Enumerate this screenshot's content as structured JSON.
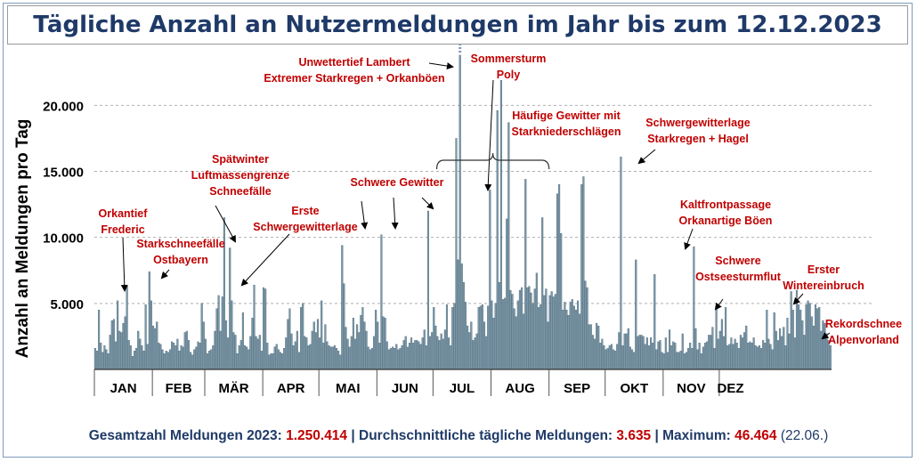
{
  "title": "Tägliche Anzahl an Nutzermeldungen im Jahr bis zum 12.12.2023",
  "colors": {
    "bar": "#7b98a8",
    "bar_stroke": "#3a5566",
    "annotation": "#c00000",
    "title": "#1f3a68",
    "grid": "#b0b0b0"
  },
  "chart_data": {
    "type": "bar",
    "ylabel": "Anzahl an Meldungen pro Tag",
    "xlabel": "",
    "ylim": [
      0,
      24000
    ],
    "y_ticks": [
      0,
      5000,
      10000,
      15000,
      20000
    ],
    "y_tick_labels": [
      "",
      "5.000",
      "10.000",
      "15.000",
      "20.000"
    ],
    "grid": "horizontal dashed",
    "months": [
      "JAN",
      "FEB",
      "MÄR",
      "APR",
      "MAI",
      "JUN",
      "JUL",
      "AUG",
      "SEP",
      "OKT",
      "NOV",
      "DEZ"
    ],
    "month_days": [
      31,
      28,
      31,
      30,
      31,
      30,
      31,
      31,
      30,
      31,
      30,
      12
    ],
    "values": [
      1600,
      1400,
      4500,
      2000,
      1300,
      1800,
      1500,
      1200,
      2600,
      3700,
      3800,
      2100,
      5200,
      2900,
      2800,
      3500,
      4000,
      6300,
      2200,
      1800,
      1000,
      1400,
      1600,
      2900,
      2300,
      1800,
      1400,
      4900,
      1900,
      7400,
      5200,
      3300,
      3100,
      3600,
      2000,
      1900,
      1500,
      1200,
      1400,
      1300,
      1500,
      2100,
      2000,
      1800,
      2300,
      1400,
      1800,
      1700,
      2800,
      2900,
      2200,
      1300,
      1100,
      1500,
      1700,
      2100,
      2000,
      5000,
      3600,
      2300,
      1200,
      1400,
      1500,
      1800,
      2900,
      4600,
      5600,
      2900,
      5500,
      11500,
      3700,
      2400,
      9200,
      5200,
      2800,
      2600,
      1200,
      1800,
      2200,
      4300,
      1800,
      1700,
      1500,
      2500,
      3900,
      6400,
      2500,
      2300,
      2600,
      1400,
      6200,
      6100,
      2000,
      1100,
      1200,
      1200,
      1700,
      1900,
      1500,
      1300,
      1200,
      1600,
      2400,
      3800,
      4600,
      2700,
      1800,
      2100,
      2900,
      1300,
      4700,
      5000,
      2500,
      2400,
      1800,
      1900,
      2900,
      3600,
      2800,
      3800,
      2400,
      5200,
      2000,
      3400,
      2100,
      1800,
      1700,
      1700,
      1800,
      1600,
      1400,
      1100,
      9400,
      6500,
      3200,
      2300,
      1700,
      2500,
      3900,
      2300,
      3400,
      2800,
      4100,
      4700,
      3600,
      2900,
      1700,
      1500,
      1600,
      2500,
      4500,
      3600,
      2000,
      10200,
      4000,
      3900,
      2100,
      1500,
      1600,
      1700,
      1600,
      1900,
      1500,
      1600,
      1800,
      2200,
      2500,
      1700,
      2000,
      2400,
      2000,
      2200,
      2200,
      2100,
      1900,
      2400,
      3000,
      1800,
      12000,
      2500,
      2800,
      4700,
      3300,
      2500,
      2200,
      2700,
      2300,
      3000,
      4900,
      2400,
      1800,
      4700,
      5000,
      17500,
      8300,
      23800,
      8000,
      6600,
      5100,
      3300,
      2800,
      3600,
      2200,
      2400,
      2700,
      4700,
      4800,
      4900,
      3600,
      2500,
      4800,
      13600,
      5200,
      3900,
      5000,
      19600,
      6600,
      21900,
      5300,
      5400,
      11400,
      18700,
      6000,
      5700,
      4600,
      4000,
      5200,
      6000,
      6200,
      4200,
      14400,
      6200,
      6300,
      5800,
      5000,
      6100,
      7300,
      4700,
      4900,
      11500,
      5600,
      6100,
      3600,
      5600,
      5900,
      5500,
      5700,
      13300,
      14000,
      10300,
      4500,
      5100,
      4500,
      4100,
      5100,
      5300,
      4800,
      4500,
      5200,
      4200,
      14000,
      14600,
      6700,
      6200,
      3400,
      3400,
      2600,
      2300,
      3500,
      3300,
      2000,
      2300,
      1800,
      1500,
      1600,
      1800,
      1900,
      1500,
      1400,
      1900,
      2800,
      16100,
      1800,
      2700,
      2700,
      3100,
      1700,
      1500,
      1300,
      8300,
      2500,
      2600,
      2600,
      2500,
      1900,
      2400,
      1800,
      2400,
      2000,
      7200,
      1500,
      2100,
      2200,
      1300,
      1200,
      2400,
      1300,
      3000,
      1800,
      2100,
      2000,
      1300,
      1300,
      1400,
      2700,
      1200,
      1300,
      1600,
      2000,
      1600,
      9300,
      3100,
      1500,
      2000,
      1200,
      1700,
      2000,
      2100,
      2600,
      2600,
      3200,
      1600,
      4800,
      2300,
      2900,
      3800,
      2500,
      4700,
      1800,
      1900,
      2400,
      1900,
      2300,
      2000,
      1600,
      2600,
      2400,
      2800,
      3300,
      2000,
      2100,
      2000,
      2400,
      1800,
      1700,
      1800,
      1600,
      2200,
      2000,
      4500,
      2300,
      1900,
      1500,
      4300,
      2900,
      2200,
      3100,
      2500,
      3200,
      1800,
      3900,
      2700,
      5900,
      4500,
      2400,
      6000,
      4900,
      4500,
      3700,
      2600,
      4900,
      5200,
      5000,
      4000,
      3300,
      4900,
      4600,
      4700,
      2900,
      3700,
      3500,
      2700,
      2200,
      1800
    ],
    "bracket_days": [
      183,
      243
    ]
  },
  "annotations": [
    {
      "lines": [
        "Orkantief",
        "Frederic"
      ]
    },
    {
      "lines": [
        "Starkschneefälle",
        "Ostbayern"
      ]
    },
    {
      "lines": [
        "Spätwinter",
        "Luftmassengrenze",
        "Schneefälle"
      ]
    },
    {
      "lines": [
        "Erste",
        "Schwergewitterlage"
      ]
    },
    {
      "lines": [
        "Schwere Gewitter"
      ]
    },
    {
      "lines": [
        "Unwettertief Lambert",
        "Extremer Starkregen + Orkanböen"
      ]
    },
    {
      "lines": [
        "Sommersturm",
        "Poly"
      ]
    },
    {
      "lines": [
        "Häufige Gewitter mit",
        "Starkniederschlägen"
      ]
    },
    {
      "lines": [
        "Schwergewitterlage",
        "Starkregen + Hagel"
      ]
    },
    {
      "lines": [
        "Kaltfrontpassage",
        "Orkanartige Böen"
      ]
    },
    {
      "lines": [
        "Schwere",
        "Ostseesturmflut"
      ]
    },
    {
      "lines": [
        "Erster",
        "Wintereinbruch"
      ]
    },
    {
      "lines": [
        "Rekordschnee",
        "Alpenvorland"
      ]
    }
  ],
  "footer": {
    "label_total": "Gesamtzahl Meldungen 2023:",
    "value_total": "1.250.414",
    "label_avg": "|  Durchschnittliche tägliche Meldungen:",
    "value_avg": "3.635",
    "label_max": "| Maximum:",
    "value_max": "46.464",
    "max_date": "(22.06.)"
  }
}
